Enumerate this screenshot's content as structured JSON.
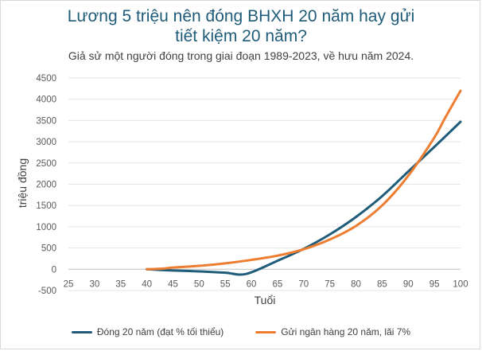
{
  "chart_data": {
    "type": "line",
    "title_line1": "Lương 5 triệu nên đóng BHXH 20 năm hay gửi",
    "title_line2": "tiết kiệm 20 năm?",
    "subtitle": "Giả sử một người đóng trong giai đoạn 1989-2023, về hưu năm 2024.",
    "xlabel": "Tuổi",
    "ylabel": "triệu đồng",
    "xlim": [
      25,
      100
    ],
    "ylim": [
      -500,
      4500
    ],
    "x_ticks": [
      25,
      30,
      35,
      40,
      45,
      50,
      55,
      60,
      65,
      70,
      75,
      80,
      85,
      90,
      95,
      100
    ],
    "y_ticks": [
      -500,
      0,
      500,
      1000,
      1500,
      2000,
      2500,
      3000,
      3500,
      4000,
      4500
    ],
    "grid": true,
    "legend_position": "bottom",
    "series": [
      {
        "name": "Đóng 20 năm (đạt % tối thiểu)",
        "color": "#1f5c7a",
        "x": [
          40,
          45,
          50,
          55,
          59,
          65,
          70,
          75,
          80,
          85,
          90,
          95,
          100
        ],
        "y": [
          0,
          -30,
          -50,
          -80,
          -110,
          200,
          480,
          820,
          1230,
          1720,
          2300,
          2880,
          3470
        ]
      },
      {
        "name": "Gửi ngân hàng 20 năm, lãi 7%",
        "color": "#ed7d31",
        "x": [
          40,
          43,
          45,
          50,
          55,
          60,
          65,
          70,
          75,
          80,
          85,
          90,
          95,
          97,
          100
        ],
        "y": [
          0,
          15,
          40,
          80,
          140,
          220,
          320,
          470,
          700,
          1020,
          1500,
          2200,
          3100,
          3550,
          4200
        ]
      }
    ]
  }
}
